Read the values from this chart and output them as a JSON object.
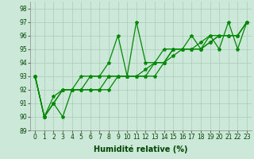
{
  "title": "",
  "xlabel": "Humidité relative (%)",
  "ylabel": "",
  "background_color": "#cce8d8",
  "grid_color": "#aaccbb",
  "line_color": "#008800",
  "xlim": [
    -0.5,
    23.5
  ],
  "ylim": [
    89,
    98.5
  ],
  "yticks": [
    89,
    90,
    91,
    92,
    93,
    94,
    95,
    96,
    97,
    98
  ],
  "xticks": [
    0,
    1,
    2,
    3,
    4,
    5,
    6,
    7,
    8,
    9,
    10,
    11,
    12,
    13,
    14,
    15,
    16,
    17,
    18,
    19,
    20,
    21,
    22,
    23
  ],
  "series": [
    [
      93,
      90,
      91,
      90,
      92,
      93,
      93,
      93,
      94,
      96,
      93,
      97,
      94,
      94,
      95,
      95,
      95,
      96,
      95,
      96,
      95,
      97,
      95,
      97
    ],
    [
      93,
      90,
      91.5,
      92,
      92,
      92,
      93,
      93,
      93,
      93,
      93,
      93,
      93,
      94,
      94,
      95,
      95,
      95,
      95.5,
      96,
      96,
      96,
      96,
      97
    ],
    [
      93,
      90,
      91,
      92,
      92,
      92,
      92,
      92,
      93,
      93,
      93,
      93,
      93,
      93,
      94,
      94.5,
      95,
      95,
      95,
      95.5,
      96,
      96,
      96,
      97
    ],
    [
      93,
      90,
      91,
      92,
      92,
      92,
      92,
      92,
      92,
      93,
      93,
      93,
      93.5,
      94,
      94,
      95,
      95,
      95,
      95,
      95.5,
      96,
      96,
      96,
      97
    ]
  ],
  "marker": "*",
  "markersize": 3,
  "linewidth": 0.9,
  "xlabel_fontsize": 7,
  "xlabel_fontweight": "bold",
  "xlabel_color": "#004400",
  "tick_fontsize": 5.5,
  "tick_color": "#004400"
}
